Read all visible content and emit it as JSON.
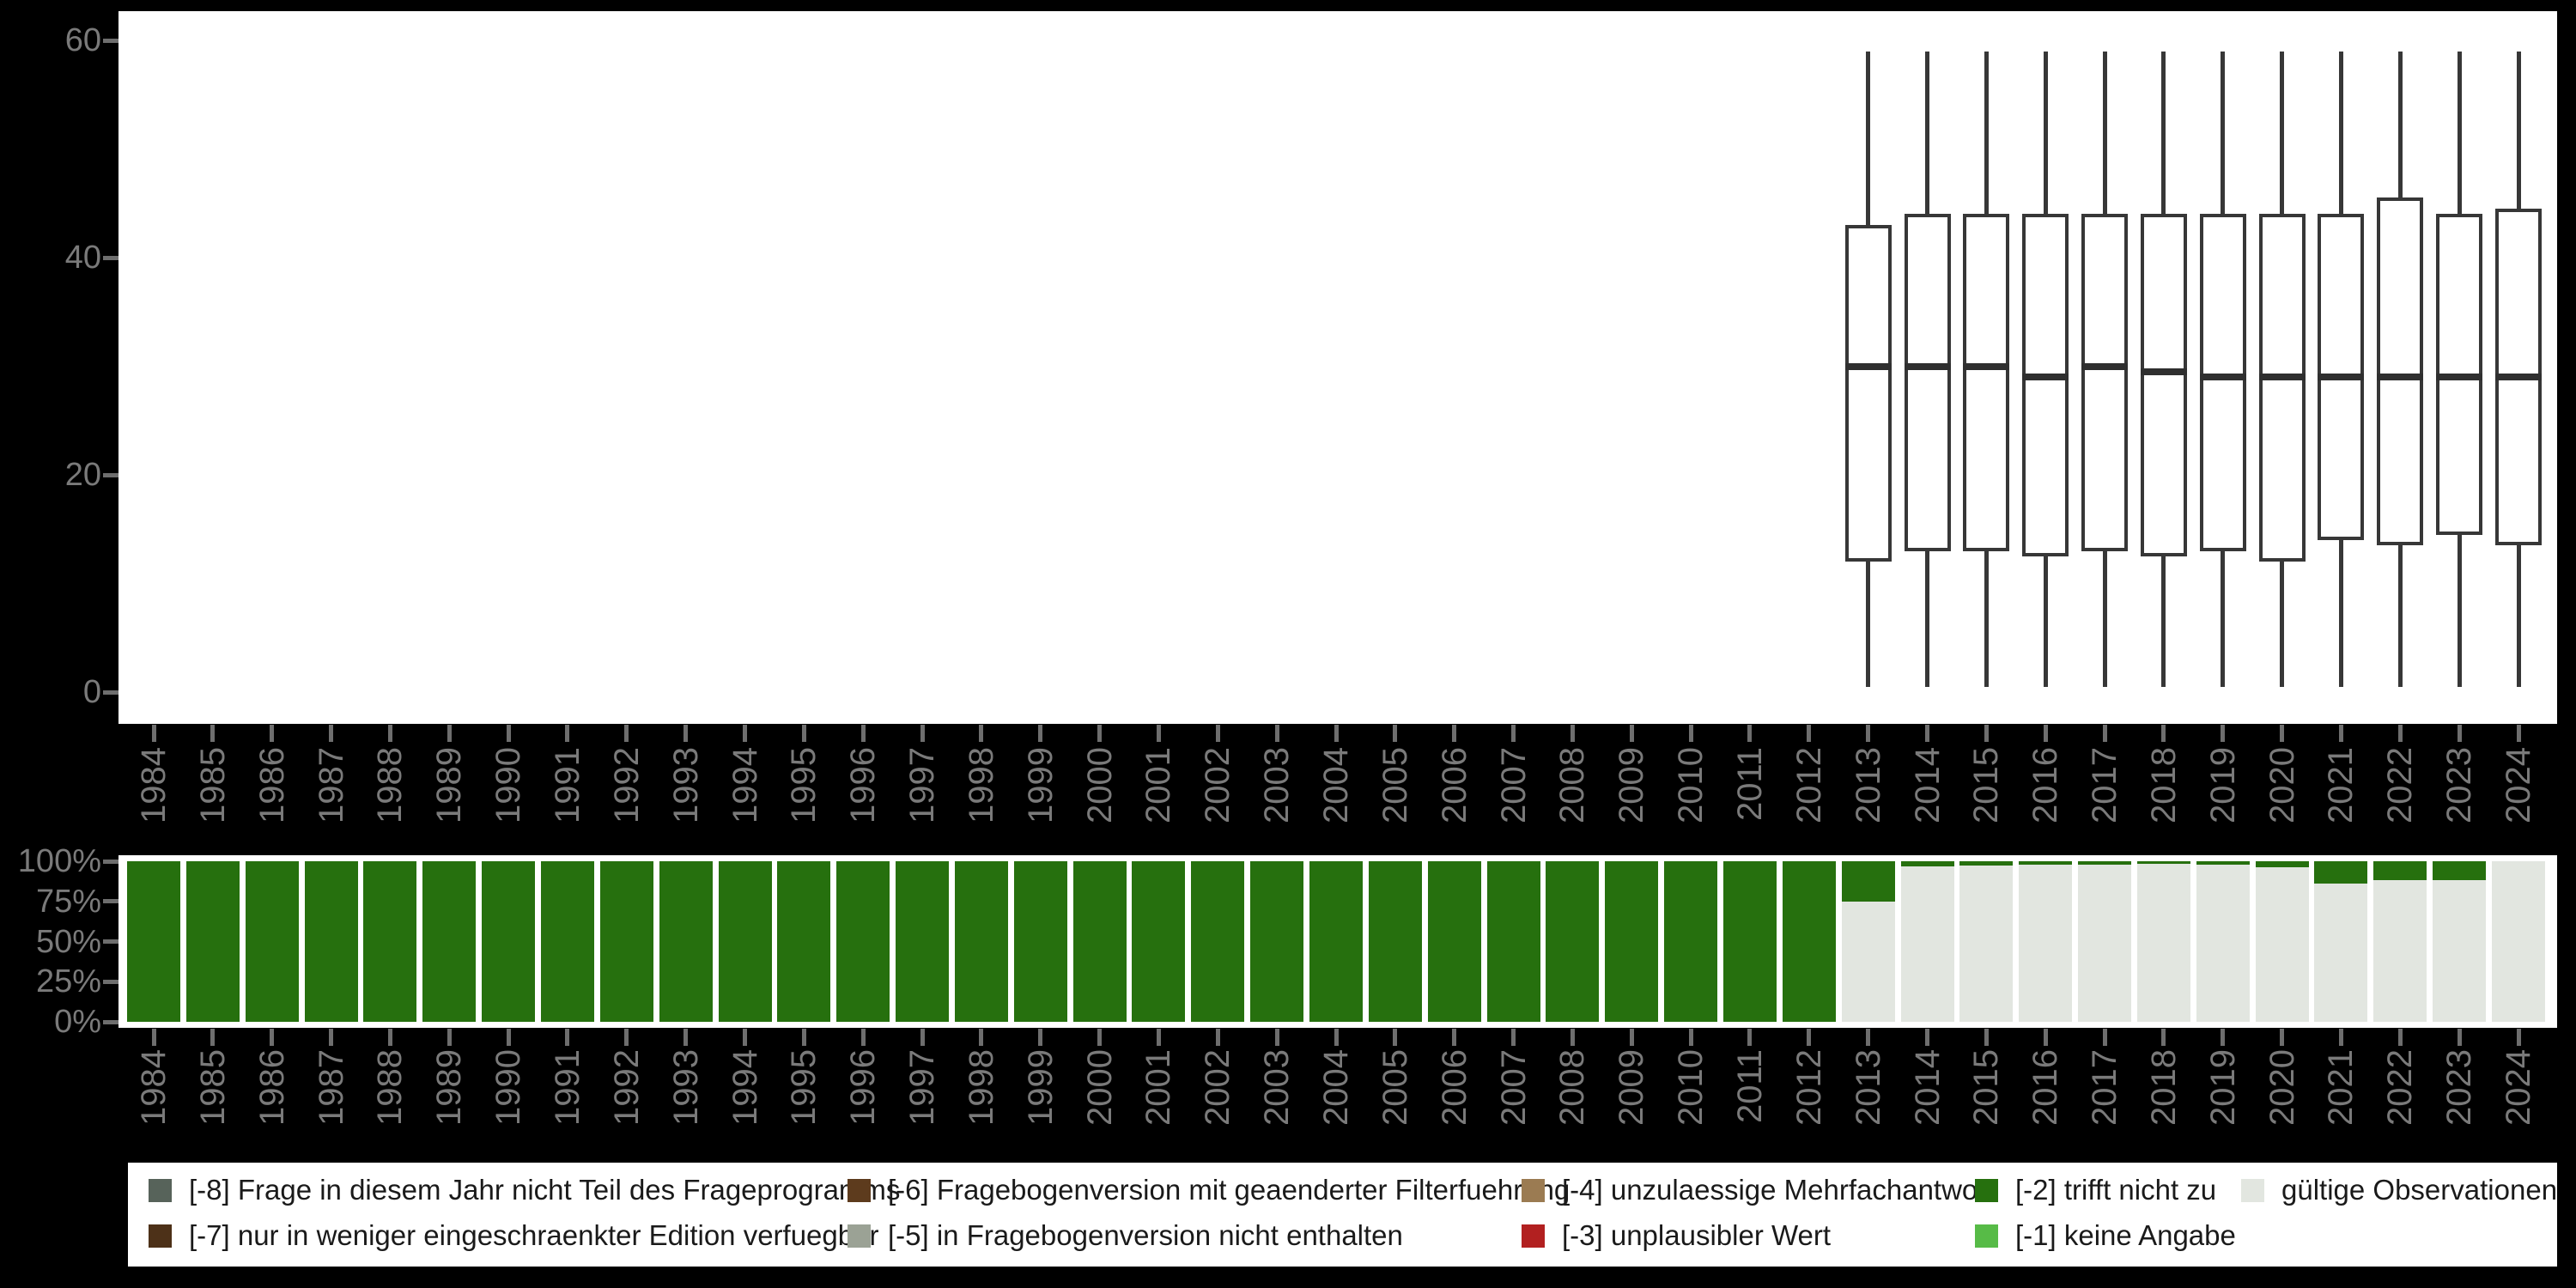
{
  "colors": {
    "background": "#000000",
    "panel": "#ffffff",
    "axis_text": "#7a7a7a",
    "tick_mark": "#6e6e6e",
    "box_stroke": "#373737",
    "bar_missing_green": "#26700e",
    "bar_valid_gray": "#e2e6e0",
    "legend_text": "#1a1a1a"
  },
  "chart_data": [
    {
      "type": "boxplot",
      "title": "",
      "xlabel": "",
      "ylabel": "",
      "ylim": [
        0,
        60
      ],
      "ytick_values": [
        60,
        40,
        20,
        0
      ],
      "ytick_labels": [
        "60",
        "40",
        "20",
        "0"
      ],
      "grid": false,
      "note": "boxplots only present for survey years 2013-2024; years 1984-2012 have no distribution",
      "series": [
        {
          "year": "2013",
          "min": 0.5,
          "q1": 12,
          "median": 30,
          "q3": 43,
          "max": 59
        },
        {
          "year": "2014",
          "min": 0.5,
          "q1": 13,
          "median": 30,
          "q3": 44,
          "max": 59
        },
        {
          "year": "2015",
          "min": 0.5,
          "q1": 13,
          "median": 30,
          "q3": 44,
          "max": 59
        },
        {
          "year": "2016",
          "min": 0.5,
          "q1": 12.5,
          "median": 29,
          "q3": 44,
          "max": 59
        },
        {
          "year": "2017",
          "min": 0.5,
          "q1": 13,
          "median": 30,
          "q3": 44,
          "max": 59
        },
        {
          "year": "2018",
          "min": 0.5,
          "q1": 12.5,
          "median": 29.5,
          "q3": 44,
          "max": 59
        },
        {
          "year": "2019",
          "min": 0.5,
          "q1": 13,
          "median": 29,
          "q3": 44,
          "max": 59
        },
        {
          "year": "2020",
          "min": 0.5,
          "q1": 12,
          "median": 29,
          "q3": 44,
          "max": 59
        },
        {
          "year": "2021",
          "min": 0.5,
          "q1": 14,
          "median": 29,
          "q3": 44,
          "max": 59
        },
        {
          "year": "2022",
          "min": 0.5,
          "q1": 13.5,
          "median": 29,
          "q3": 45.5,
          "max": 59
        },
        {
          "year": "2023",
          "min": 0.5,
          "q1": 14.5,
          "median": 29,
          "q3": 44,
          "max": 59
        },
        {
          "year": "2024",
          "min": 0.5,
          "q1": 13.5,
          "median": 29,
          "q3": 44.5,
          "max": 59
        }
      ]
    },
    {
      "type": "bar",
      "stacked": true,
      "unit": "percent",
      "title": "",
      "ytick_values": [
        100,
        75,
        50,
        25,
        0
      ],
      "ytick_labels": [
        "100%",
        "75%",
        "50%",
        "25%",
        "0%"
      ],
      "categories": [
        "1984",
        "1985",
        "1986",
        "1987",
        "1988",
        "1989",
        "1990",
        "1991",
        "1992",
        "1993",
        "1994",
        "1995",
        "1996",
        "1997",
        "1998",
        "1999",
        "2000",
        "2001",
        "2002",
        "2003",
        "2004",
        "2005",
        "2006",
        "2007",
        "2008",
        "2009",
        "2010",
        "2011",
        "2012",
        "2013",
        "2014",
        "2015",
        "2016",
        "2017",
        "2018",
        "2019",
        "2020",
        "2021",
        "2022",
        "2023",
        "2024"
      ],
      "series": [
        {
          "name": "[-2] trifft nicht zu",
          "color": "#26700e",
          "values": [
            100,
            100,
            100,
            100,
            100,
            100,
            100,
            100,
            100,
            100,
            100,
            100,
            100,
            100,
            100,
            100,
            100,
            100,
            100,
            100,
            100,
            100,
            100,
            100,
            100,
            100,
            100,
            100,
            100,
            25,
            3,
            2.5,
            2,
            2,
            1.5,
            2,
            3.5,
            14,
            12,
            11.5,
            0
          ]
        },
        {
          "name": "gültige Observationen",
          "color": "#e2e6e0",
          "values": [
            0,
            0,
            0,
            0,
            0,
            0,
            0,
            0,
            0,
            0,
            0,
            0,
            0,
            0,
            0,
            0,
            0,
            0,
            0,
            0,
            0,
            0,
            0,
            0,
            0,
            0,
            0,
            0,
            0,
            75,
            97,
            97.5,
            98,
            98,
            98.5,
            98,
            96.5,
            86,
            88,
            88.5,
            100
          ]
        }
      ]
    }
  ],
  "legend": {
    "items": [
      {
        "code": "-8",
        "label": "[-8] Frage in diesem Jahr nicht Teil des Frageprogramms",
        "color": "#57635a",
        "row": 0,
        "col": 0
      },
      {
        "code": "-7",
        "label": "[-7] nur in weniger eingeschraenkter Edition verfuegbar",
        "color": "#4d3118",
        "row": 1,
        "col": 0
      },
      {
        "code": "-6",
        "label": "[-6] Fragebogenversion mit geaenderter Filterfuehrung",
        "color": "#5d3b1d",
        "row": 0,
        "col": 1
      },
      {
        "code": "-5",
        "label": "[-5] in Fragebogenversion nicht enthalten",
        "color": "#9ba295",
        "row": 1,
        "col": 1
      },
      {
        "code": "-4",
        "label": "[-4] unzulaessige Mehrfachantwort",
        "color": "#9b7b52",
        "row": 0,
        "col": 2
      },
      {
        "code": "-3",
        "label": "[-3] unplausibler Wert",
        "color": "#b22020",
        "row": 1,
        "col": 2
      },
      {
        "code": "-2",
        "label": "[-2] trifft nicht zu",
        "color": "#26700e",
        "row": 0,
        "col": 3
      },
      {
        "code": "-1",
        "label": "[-1] keine Angabe",
        "color": "#57bb47",
        "row": 1,
        "col": 3
      },
      {
        "code": "valid",
        "label": "gültige Observationen",
        "color": "#e2e6e0",
        "row": 0,
        "col": 4
      }
    ]
  }
}
